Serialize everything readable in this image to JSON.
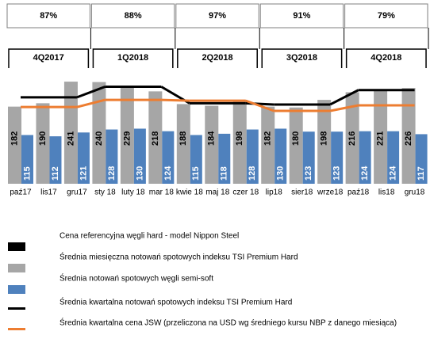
{
  "chart_data": {
    "type": "bar",
    "categories": [
      "paź17",
      "lis17",
      "gru17",
      "sty 18",
      "luty 18",
      "mar 18",
      "kwie 18",
      "maj 18",
      "czer 18",
      "lip18",
      "sier18",
      "wrze18",
      "paź18",
      "lis18",
      "gru18"
    ],
    "ylim": [
      0,
      250
    ],
    "series": [
      {
        "name": "Cena referencyjna węgli hard - model Nippon Steel",
        "color": "#000000"
      },
      {
        "name": "Średnia miesięczna notowań spotowych indeksu TSI Premium Hard",
        "color": "#a6a6a6",
        "values": [
          182,
          190,
          241,
          240,
          229,
          218,
          188,
          184,
          198,
          182,
          180,
          198,
          216,
          221,
          226
        ]
      },
      {
        "name": "Średnia notowań spotowych węgli semi-soft",
        "color": "#4f81bd",
        "values": [
          115,
          112,
          121,
          128,
          130,
          124,
          115,
          118,
          128,
          130,
          123,
          123,
          124,
          124,
          117
        ]
      }
    ],
    "quarters": {
      "categories": [
        "4Q2017",
        "1Q2018",
        "2Q2018",
        "3Q2018",
        "4Q2018"
      ],
      "values": [
        87,
        88,
        97,
        91,
        79
      ],
      "value_labels": [
        "87%",
        "88%",
        "97%",
        "91%",
        "79%"
      ]
    },
    "quarter_series": [
      {
        "name": "Średnia kwartalna notowań spotowych indeksu TSI Premium Hard",
        "color": "#000000",
        "values": [
          204,
          229,
          190,
          187,
          221
        ]
      },
      {
        "name": "Średnia kwartalna cena JSW (przeliczona na USD wg średniego kursu NBP z danego miesiąca)",
        "color": "#ed7d31",
        "values": [
          181,
          198,
          196,
          172,
          185
        ]
      }
    ]
  }
}
